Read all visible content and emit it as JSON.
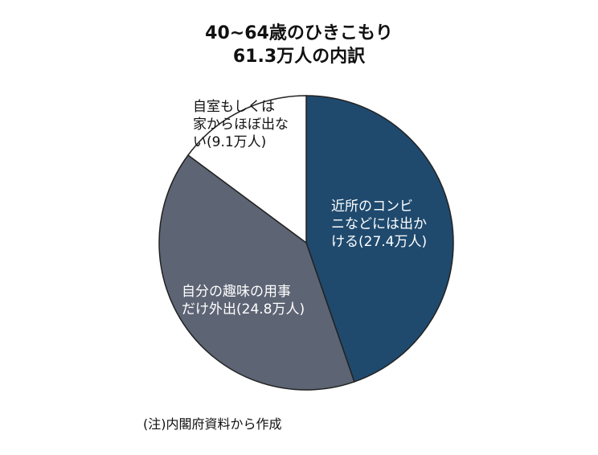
{
  "chart_data": {
    "type": "pie",
    "title_line1": "40~64歳のひきこもり",
    "title_line2": "61.3万人の内訳",
    "total": 61.3,
    "unit": "万人",
    "start": "12 o'clock",
    "direction": "clockwise",
    "slices": [
      {
        "label_lines": [
          "近所のコンビ",
          "ニなどには出か",
          "ける(27.4万人)"
        ],
        "value": 27.4,
        "color": "#1f4a6e",
        "text_color": "#ffffff"
      },
      {
        "label_lines": [
          "自分の趣味の用事",
          "だけ外出(24.8万人)"
        ],
        "value": 24.8,
        "color": "#5d6474",
        "text_color": "#ffffff"
      },
      {
        "label_lines": [
          "自室もしくは",
          "家からほぼ出な",
          "い(9.1万人)"
        ],
        "value": 9.1,
        "color": "#ffffff",
        "text_color": "#111111"
      }
    ]
  },
  "source_note": "(注)内閣府資料から作成"
}
